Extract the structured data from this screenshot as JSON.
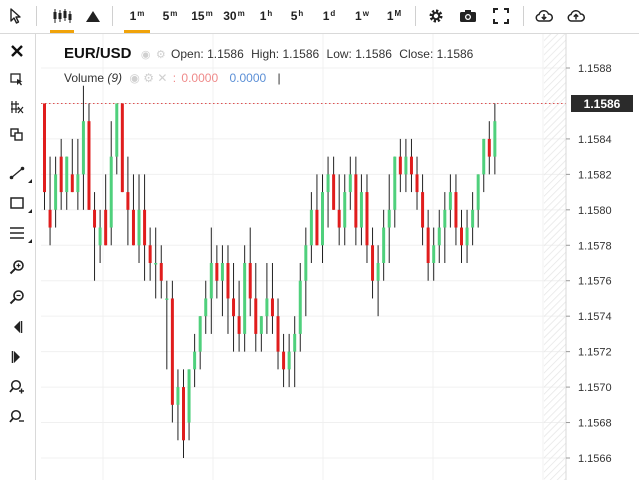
{
  "toolbar": {
    "timeframes": [
      {
        "label": "1",
        "sup": "m",
        "active": true
      },
      {
        "label": "5",
        "sup": "m"
      },
      {
        "label": "15",
        "sup": "m"
      },
      {
        "label": "30",
        "sup": "m"
      },
      {
        "label": "1",
        "sup": "h"
      },
      {
        "label": "5",
        "sup": "h"
      },
      {
        "label": "1",
        "sup": "d"
      },
      {
        "label": "1",
        "sup": "w"
      },
      {
        "label": "1",
        "sup": "M"
      }
    ],
    "icons": [
      "cursor-icon",
      "candlestick-icon",
      "mountain-icon",
      "gear-icon",
      "camera-icon",
      "fullscreen-icon",
      "download-icon",
      "upload-icon"
    ]
  },
  "left_tools": [
    "close-icon",
    "select-tool-icon",
    "grid-tool-icon",
    "clone-tool-icon",
    "trendline-icon",
    "rectangle-icon",
    "lines-icon",
    "zoom-in-icon",
    "zoom-out-icon",
    "scroll-left-icon",
    "scroll-right-icon",
    "zoom-in-alt-icon",
    "zoom-out-alt-icon"
  ],
  "legend": {
    "symbol": "EUR/USD",
    "open_label": "Open:",
    "open": "1.1586",
    "high_label": "High:",
    "high": "1.1586",
    "low_label": "Low:",
    "low": "1.1586",
    "close_label": "Close:",
    "close": "1.1586",
    "volume_label": "Volume",
    "volume_period": "(9)",
    "volume_sep": ":",
    "volume_red": "0.0000",
    "volume_blue": "0.0000",
    "volume_bar": "|"
  },
  "chart_data": {
    "type": "ohlc",
    "symbol": "EUR/USD",
    "timeframe": "1m",
    "ylim": [
      1.1565,
      1.159
    ],
    "y_ticks": [
      "1.1588",
      "1.1586",
      "1.1584",
      "1.1582",
      "1.1580",
      "1.1578",
      "1.1576",
      "1.1574",
      "1.1572",
      "1.1570",
      "1.1568",
      "1.1566"
    ],
    "current_price": "1.1586",
    "up_color": "#4fd07c",
    "down_color": "#e01d1d",
    "wick_color": "#222222",
    "candles": [
      [
        1.1586,
        1.1586,
        1.158,
        1.1581
      ],
      [
        1.158,
        1.1583,
        1.1578,
        1.1579
      ],
      [
        1.158,
        1.1583,
        1.1579,
        1.1582
      ],
      [
        1.1583,
        1.1584,
        1.158,
        1.1581
      ],
      [
        1.1581,
        1.1583,
        1.158,
        1.1583
      ],
      [
        1.1582,
        1.1584,
        1.1581,
        1.1581
      ],
      [
        1.1581,
        1.1584,
        1.158,
        1.1582
      ],
      [
        1.1582,
        1.1587,
        1.158,
        1.1585
      ],
      [
        1.1585,
        1.1586,
        1.158,
        1.158
      ],
      [
        1.158,
        1.1581,
        1.1576,
        1.1579
      ],
      [
        1.1578,
        1.158,
        1.1577,
        1.1579
      ],
      [
        1.158,
        1.1582,
        1.1578,
        1.1578
      ],
      [
        1.1579,
        1.1585,
        1.1578,
        1.1583
      ],
      [
        1.1583,
        1.1586,
        1.1582,
        1.1586
      ],
      [
        1.1586,
        1.1586,
        1.1581,
        1.1581
      ],
      [
        1.1581,
        1.1583,
        1.1578,
        1.158
      ],
      [
        1.158,
        1.1582,
        1.1578,
        1.1578
      ],
      [
        1.1578,
        1.1582,
        1.1577,
        1.158
      ],
      [
        1.158,
        1.1582,
        1.1576,
        1.1578
      ],
      [
        1.1578,
        1.1579,
        1.1576,
        1.1577
      ],
      [
        1.1577,
        1.1579,
        1.1575,
        1.1577
      ],
      [
        1.1577,
        1.1578,
        1.1575,
        1.1576
      ],
      [
        1.1575,
        1.1576,
        1.1571,
        1.1575
      ],
      [
        1.1575,
        1.1576,
        1.1568,
        1.1569
      ],
      [
        1.1569,
        1.1571,
        1.1567,
        1.157
      ],
      [
        1.157,
        1.1571,
        1.1566,
        1.1567
      ],
      [
        1.1568,
        1.1571,
        1.1567,
        1.1571
      ],
      [
        1.1571,
        1.1573,
        1.157,
        1.1572
      ],
      [
        1.1572,
        1.1574,
        1.1571,
        1.1574
      ],
      [
        1.1574,
        1.1576,
        1.1573,
        1.1575
      ],
      [
        1.1575,
        1.1579,
        1.1573,
        1.1577
      ],
      [
        1.1577,
        1.1578,
        1.1575,
        1.1576
      ],
      [
        1.1576,
        1.1578,
        1.1574,
        1.1577
      ],
      [
        1.1577,
        1.1578,
        1.1573,
        1.1575
      ],
      [
        1.1575,
        1.1577,
        1.1572,
        1.1574
      ],
      [
        1.1574,
        1.1576,
        1.1572,
        1.1573
      ],
      [
        1.1573,
        1.1578,
        1.1572,
        1.1577
      ],
      [
        1.1577,
        1.1579,
        1.1574,
        1.1575
      ],
      [
        1.1575,
        1.1577,
        1.1572,
        1.1573
      ],
      [
        1.1573,
        1.1574,
        1.1572,
        1.1574
      ],
      [
        1.1574,
        1.1577,
        1.1573,
        1.1575
      ],
      [
        1.1575,
        1.1577,
        1.1573,
        1.1574
      ],
      [
        1.1574,
        1.1575,
        1.1571,
        1.1572
      ],
      [
        1.1572,
        1.1573,
        1.157,
        1.1571
      ],
      [
        1.1571,
        1.1573,
        1.157,
        1.1572
      ],
      [
        1.1572,
        1.1574,
        1.157,
        1.1573
      ],
      [
        1.1573,
        1.1577,
        1.1572,
        1.1576
      ],
      [
        1.1576,
        1.1579,
        1.1574,
        1.1578
      ],
      [
        1.1578,
        1.1581,
        1.1577,
        1.158
      ],
      [
        1.158,
        1.1582,
        1.1578,
        1.1578
      ],
      [
        1.1578,
        1.1582,
        1.1577,
        1.1581
      ],
      [
        1.1581,
        1.1583,
        1.1579,
        1.1582
      ],
      [
        1.1582,
        1.1583,
        1.158,
        1.158
      ],
      [
        1.158,
        1.1582,
        1.1578,
        1.1579
      ],
      [
        1.1579,
        1.1582,
        1.1578,
        1.1581
      ],
      [
        1.1581,
        1.1583,
        1.158,
        1.1582
      ],
      [
        1.1582,
        1.1583,
        1.1578,
        1.1579
      ],
      [
        1.1579,
        1.1582,
        1.1578,
        1.1581
      ],
      [
        1.1581,
        1.1582,
        1.1577,
        1.1578
      ],
      [
        1.1578,
        1.1579,
        1.1575,
        1.1576
      ],
      [
        1.1576,
        1.1578,
        1.1574,
        1.1577
      ],
      [
        1.1577,
        1.158,
        1.1576,
        1.1579
      ],
      [
        1.1579,
        1.1582,
        1.1577,
        1.158
      ],
      [
        1.158,
        1.1583,
        1.1579,
        1.1583
      ],
      [
        1.1583,
        1.1584,
        1.1581,
        1.1582
      ],
      [
        1.1582,
        1.1584,
        1.1581,
        1.1583
      ],
      [
        1.1583,
        1.1584,
        1.1581,
        1.1582
      ],
      [
        1.1582,
        1.1583,
        1.158,
        1.1581
      ],
      [
        1.1581,
        1.1582,
        1.1578,
        1.1579
      ],
      [
        1.1579,
        1.158,
        1.1576,
        1.1577
      ],
      [
        1.1577,
        1.1579,
        1.1576,
        1.1578
      ],
      [
        1.1578,
        1.158,
        1.1577,
        1.1579
      ],
      [
        1.1579,
        1.1581,
        1.1577,
        1.158
      ],
      [
        1.158,
        1.1582,
        1.1579,
        1.1581
      ],
      [
        1.1581,
        1.1582,
        1.1578,
        1.1579
      ],
      [
        1.1579,
        1.158,
        1.1577,
        1.1578
      ],
      [
        1.1578,
        1.158,
        1.1577,
        1.1579
      ],
      [
        1.1579,
        1.1581,
        1.1578,
        1.158
      ],
      [
        1.158,
        1.1582,
        1.1579,
        1.1582
      ],
      [
        1.1582,
        1.1584,
        1.1581,
        1.1584
      ],
      [
        1.1584,
        1.1585,
        1.1582,
        1.1583
      ],
      [
        1.1583,
        1.1586,
        1.1582,
        1.1585
      ]
    ]
  }
}
